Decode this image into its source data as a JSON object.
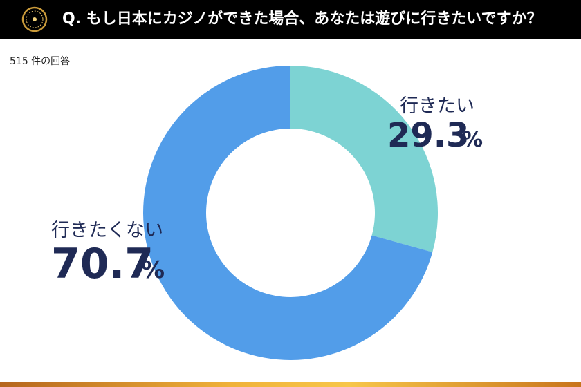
{
  "header": {
    "title": "Q. もし日本にカジノができた場合、あなたは遊びに行きたいですか？"
  },
  "response_count": "515 件の回答",
  "colors": {
    "header_bg": "#000000",
    "yes": "#7dd3d3",
    "no": "#529de9",
    "label_text": "#1f2a55"
  },
  "chart_data": {
    "type": "pie",
    "donut": true,
    "categories": [
      "行きたい",
      "行きたくない"
    ],
    "values": [
      29.3,
      70.7
    ],
    "value_labels": [
      "29.3",
      "70.7"
    ],
    "unit": "%",
    "colors": [
      "#7dd3d3",
      "#529de9"
    ]
  }
}
